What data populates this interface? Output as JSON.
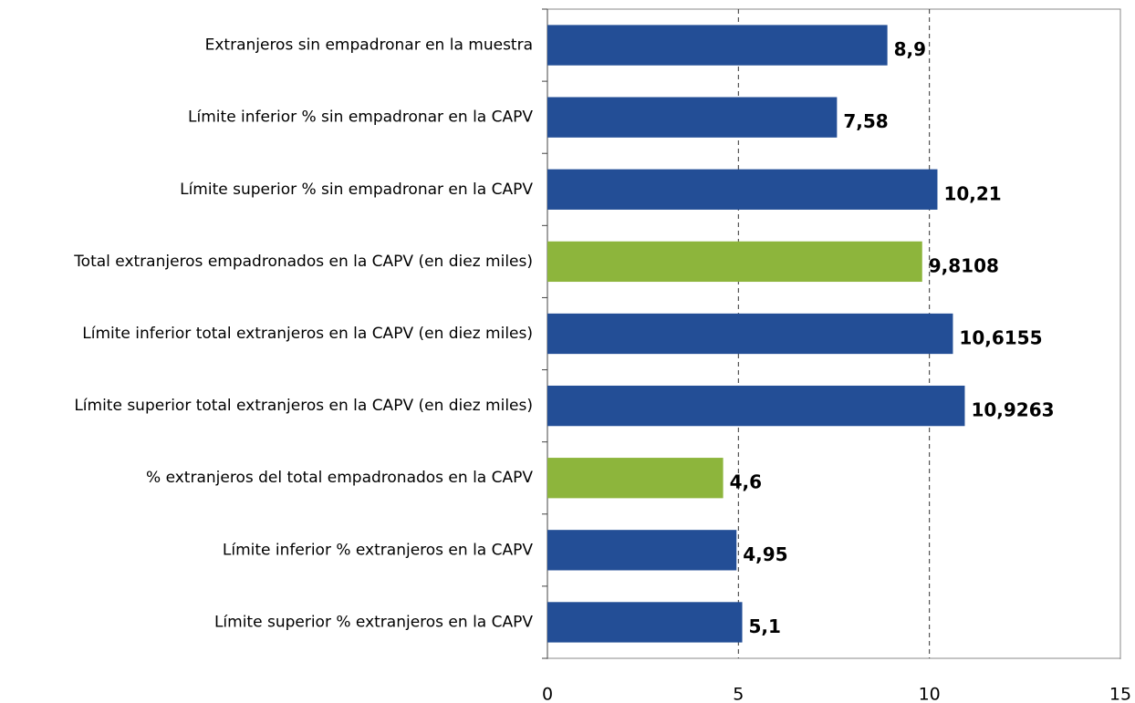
{
  "chart_data": {
    "type": "bar",
    "orientation": "horizontal",
    "categories": [
      "Extranjeros sin empadronar en la muestra",
      "Límite inferior % sin empadronar en la CAPV",
      "Límite superior % sin empadronar en la CAPV",
      "Total extranjeros empadronados en la CAPV (en diez miles)",
      "Límite inferior total extranjeros en la CAPV (en diez miles)",
      "Límite superior total extranjeros en la CAPV (en diez miles)",
      "% extranjeros del total empadronados en la CAPV",
      "Límite inferior % extranjeros en la CAPV",
      "Límite superior % extranjeros en la CAPV"
    ],
    "values": [
      8.9,
      7.58,
      10.21,
      9.8108,
      10.6155,
      10.9263,
      4.6,
      4.95,
      5.1
    ],
    "value_labels": [
      "8,9",
      "7,58",
      "10,21",
      "9,8108",
      "10,6155",
      "10,9263",
      "4,6",
      "4,95",
      "5,1"
    ],
    "colors": [
      "#234e96",
      "#234e96",
      "#234e96",
      "#8db53c",
      "#234e96",
      "#234e96",
      "#8db53c",
      "#234e96",
      "#234e96"
    ],
    "xlim": [
      0,
      15
    ],
    "xticks": [
      0,
      5,
      10,
      15
    ],
    "grid": true
  }
}
